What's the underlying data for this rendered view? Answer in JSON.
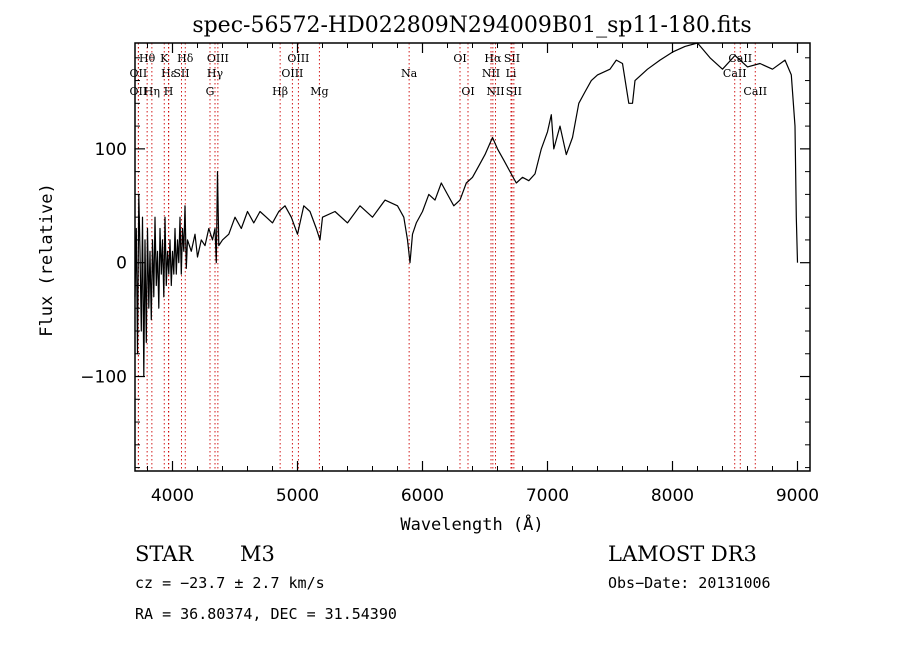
{
  "chart_data": {
    "type": "line",
    "title": "spec-56572-HD022809N294009B01_sp11-180.fits",
    "xlabel": "Wavelength (Å)",
    "ylabel": "Flux (relative)",
    "xlim": [
      3700,
      9100
    ],
    "ylim": [
      -183,
      193
    ],
    "x_ticks": [
      4000,
      5000,
      6000,
      7000,
      8000,
      9000
    ],
    "x_tick_labels": [
      "4000",
      "5000",
      "6000",
      "7000",
      "8000",
      "9000"
    ],
    "y_ticks": [
      -100,
      0,
      100
    ],
    "y_tick_labels": [
      "−100",
      "0",
      "100"
    ],
    "series": [
      {
        "name": "spectrum",
        "points": [
          [
            3700,
            -30
          ],
          [
            3710,
            30
          ],
          [
            3720,
            -80
          ],
          [
            3730,
            60
          ],
          [
            3740,
            10
          ],
          [
            3750,
            -60
          ],
          [
            3760,
            40
          ],
          [
            3770,
            -100
          ],
          [
            3780,
            20
          ],
          [
            3790,
            -70
          ],
          [
            3800,
            30
          ],
          [
            3810,
            -40
          ],
          [
            3820,
            10
          ],
          [
            3830,
            -50
          ],
          [
            3840,
            20
          ],
          [
            3850,
            -30
          ],
          [
            3860,
            40
          ],
          [
            3870,
            -20
          ],
          [
            3880,
            10
          ],
          [
            3890,
            -40
          ],
          [
            3900,
            30
          ],
          [
            3910,
            -10
          ],
          [
            3920,
            20
          ],
          [
            3930,
            -30
          ],
          [
            3940,
            40
          ],
          [
            3950,
            -20
          ],
          [
            3960,
            10
          ],
          [
            3970,
            -10
          ],
          [
            3980,
            20
          ],
          [
            3990,
            -20
          ],
          [
            4000,
            10
          ],
          [
            4010,
            -10
          ],
          [
            4020,
            30
          ],
          [
            4030,
            -10
          ],
          [
            4040,
            20
          ],
          [
            4050,
            0
          ],
          [
            4060,
            40
          ],
          [
            4070,
            -10
          ],
          [
            4080,
            30
          ],
          [
            4090,
            10
          ],
          [
            4100,
            50
          ],
          [
            4110,
            -5
          ],
          [
            4120,
            20
          ],
          [
            4150,
            10
          ],
          [
            4180,
            25
          ],
          [
            4200,
            5
          ],
          [
            4230,
            20
          ],
          [
            4260,
            15
          ],
          [
            4290,
            30
          ],
          [
            4320,
            20
          ],
          [
            4340,
            30
          ],
          [
            4350,
            0
          ],
          [
            4360,
            80
          ],
          [
            4370,
            15
          ],
          [
            4400,
            20
          ],
          [
            4450,
            25
          ],
          [
            4500,
            40
          ],
          [
            4550,
            30
          ],
          [
            4600,
            45
          ],
          [
            4650,
            35
          ],
          [
            4700,
            45
          ],
          [
            4750,
            40
          ],
          [
            4800,
            35
          ],
          [
            4850,
            45
          ],
          [
            4900,
            50
          ],
          [
            4950,
            40
          ],
          [
            5000,
            25
          ],
          [
            5050,
            50
          ],
          [
            5100,
            45
          ],
          [
            5150,
            30
          ],
          [
            5180,
            20
          ],
          [
            5200,
            40
          ],
          [
            5300,
            45
          ],
          [
            5400,
            35
          ],
          [
            5500,
            50
          ],
          [
            5600,
            40
          ],
          [
            5700,
            55
          ],
          [
            5800,
            50
          ],
          [
            5850,
            40
          ],
          [
            5880,
            20
          ],
          [
            5900,
            0
          ],
          [
            5920,
            25
          ],
          [
            5950,
            35
          ],
          [
            6000,
            45
          ],
          [
            6050,
            60
          ],
          [
            6100,
            55
          ],
          [
            6150,
            70
          ],
          [
            6200,
            60
          ],
          [
            6250,
            50
          ],
          [
            6300,
            55
          ],
          [
            6350,
            70
          ],
          [
            6400,
            75
          ],
          [
            6450,
            85
          ],
          [
            6500,
            95
          ],
          [
            6560,
            110
          ],
          [
            6600,
            100
          ],
          [
            6650,
            90
          ],
          [
            6700,
            80
          ],
          [
            6750,
            70
          ],
          [
            6800,
            75
          ],
          [
            6850,
            72
          ],
          [
            6900,
            78
          ],
          [
            6950,
            100
          ],
          [
            7000,
            115
          ],
          [
            7030,
            130
          ],
          [
            7050,
            100
          ],
          [
            7100,
            120
          ],
          [
            7150,
            95
          ],
          [
            7200,
            110
          ],
          [
            7250,
            140
          ],
          [
            7300,
            150
          ],
          [
            7350,
            160
          ],
          [
            7400,
            165
          ],
          [
            7500,
            170
          ],
          [
            7550,
            178
          ],
          [
            7600,
            175
          ],
          [
            7650,
            140
          ],
          [
            7680,
            140
          ],
          [
            7700,
            160
          ],
          [
            7800,
            170
          ],
          [
            7900,
            178
          ],
          [
            8000,
            185
          ],
          [
            8100,
            190
          ],
          [
            8200,
            193
          ],
          [
            8300,
            180
          ],
          [
            8400,
            170
          ],
          [
            8500,
            182
          ],
          [
            8600,
            172
          ],
          [
            8700,
            175
          ],
          [
            8800,
            170
          ],
          [
            8900,
            178
          ],
          [
            8950,
            165
          ],
          [
            8980,
            120
          ],
          [
            8990,
            40
          ],
          [
            9000,
            0
          ]
        ]
      }
    ],
    "line_markers": [
      {
        "label": "Hθ",
        "x": 3797,
        "row": 1
      },
      {
        "label": "OII",
        "x": 3727,
        "row": 2
      },
      {
        "label": "OII",
        "x": 3727,
        "row": 3
      },
      {
        "label": "K",
        "x": 3934,
        "row": 1
      },
      {
        "label": "Hε",
        "x": 3970,
        "row": 2
      },
      {
        "label": "Hη",
        "x": 3835,
        "row": 3
      },
      {
        "label": "H",
        "x": 3968,
        "row": 3
      },
      {
        "label": "Hδ",
        "x": 4102,
        "row": 1
      },
      {
        "label": "SII",
        "x": 4072,
        "row": 2
      },
      {
        "label": "OIII",
        "x": 4363,
        "row": 1
      },
      {
        "label": "Hγ",
        "x": 4340,
        "row": 2
      },
      {
        "label": "G",
        "x": 4300,
        "row": 3
      },
      {
        "label": "OIII",
        "x": 5007,
        "row": 1
      },
      {
        "label": "OIII",
        "x": 4959,
        "row": 2
      },
      {
        "label": "Hβ",
        "x": 4861,
        "row": 3
      },
      {
        "label": "Mg",
        "x": 5175,
        "row": 3
      },
      {
        "label": "Na",
        "x": 5893,
        "row": 2
      },
      {
        "label": "OI",
        "x": 6300,
        "row": 1
      },
      {
        "label": "OI",
        "x": 6364,
        "row": 3
      },
      {
        "label": "Hα",
        "x": 6563,
        "row": 1
      },
      {
        "label": "SII",
        "x": 6716,
        "row": 1
      },
      {
        "label": "NII",
        "x": 6548,
        "row": 2
      },
      {
        "label": "Li",
        "x": 6708,
        "row": 2
      },
      {
        "label": "NII",
        "x": 6584,
        "row": 3
      },
      {
        "label": "SII",
        "x": 6731,
        "row": 3
      },
      {
        "label": "CaII",
        "x": 8542,
        "row": 1
      },
      {
        "label": "CaII",
        "x": 8498,
        "row": 2
      },
      {
        "label": "CaII",
        "x": 8662,
        "row": 3
      }
    ],
    "marker_color": "#cc0000",
    "line_color": "#000000"
  },
  "info": {
    "object_class": "STAR",
    "subclass": "M3",
    "survey": "LAMOST DR3",
    "redshift": "cz = −23.7 ± 2.7 km/s",
    "obs_date": "Obs−Date: 20131006",
    "coords": "RA =  36.80374, DEC =  31.54390"
  }
}
